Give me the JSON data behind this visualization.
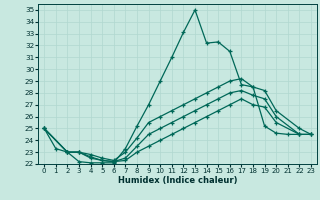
{
  "title": "",
  "xlabel": "Humidex (Indice chaleur)",
  "bg_color": "#c8e8e0",
  "grid_color": "#b0d8d0",
  "line_color": "#006858",
  "xlim": [
    -0.5,
    23.5
  ],
  "ylim": [
    22,
    35.5
  ],
  "xticks": [
    0,
    1,
    2,
    3,
    4,
    5,
    6,
    7,
    8,
    9,
    10,
    11,
    12,
    13,
    14,
    15,
    16,
    17,
    18,
    19,
    20,
    21,
    22,
    23
  ],
  "yticks": [
    22,
    23,
    24,
    25,
    26,
    27,
    28,
    29,
    30,
    31,
    32,
    33,
    34,
    35
  ],
  "lines": [
    {
      "x": [
        0,
        1,
        2,
        3,
        4,
        5,
        6,
        7,
        8,
        9,
        10,
        11,
        12,
        13,
        14,
        15,
        16,
        17,
        18,
        19,
        20,
        21,
        22
      ],
      "y": [
        25.0,
        23.3,
        23.0,
        22.2,
        22.1,
        22.1,
        22.1,
        23.3,
        25.2,
        27.0,
        29.0,
        31.0,
        33.1,
        35.0,
        32.2,
        32.3,
        31.5,
        28.7,
        28.5,
        25.2,
        24.6,
        24.5,
        24.5
      ]
    },
    {
      "x": [
        0,
        2,
        3,
        4,
        5,
        6,
        7,
        8,
        9,
        10,
        11,
        12,
        13,
        14,
        15,
        16,
        17,
        18,
        19,
        20,
        22,
        23
      ],
      "y": [
        25.0,
        23.0,
        23.0,
        22.8,
        22.5,
        22.3,
        23.0,
        24.2,
        25.5,
        26.0,
        26.5,
        27.0,
        27.5,
        28.0,
        28.5,
        29.0,
        29.2,
        28.5,
        28.2,
        26.5,
        25.0,
        24.5
      ]
    },
    {
      "x": [
        0,
        2,
        3,
        4,
        5,
        6,
        7,
        8,
        9,
        10,
        11,
        12,
        13,
        14,
        15,
        16,
        17,
        18,
        19,
        20,
        22,
        23
      ],
      "y": [
        25.0,
        23.0,
        23.0,
        22.6,
        22.3,
        22.2,
        22.5,
        23.5,
        24.5,
        25.0,
        25.5,
        26.0,
        26.5,
        27.0,
        27.5,
        28.0,
        28.2,
        27.8,
        27.5,
        26.0,
        24.5,
        24.5
      ]
    },
    {
      "x": [
        0,
        2,
        3,
        4,
        5,
        6,
        7,
        8,
        9,
        10,
        11,
        12,
        13,
        14,
        15,
        16,
        17,
        18,
        19,
        20,
        22,
        23
      ],
      "y": [
        25.0,
        23.0,
        23.0,
        22.5,
        22.3,
        22.2,
        22.3,
        23.0,
        23.5,
        24.0,
        24.5,
        25.0,
        25.5,
        26.0,
        26.5,
        27.0,
        27.5,
        27.0,
        26.8,
        25.5,
        24.5,
        24.5
      ]
    }
  ]
}
